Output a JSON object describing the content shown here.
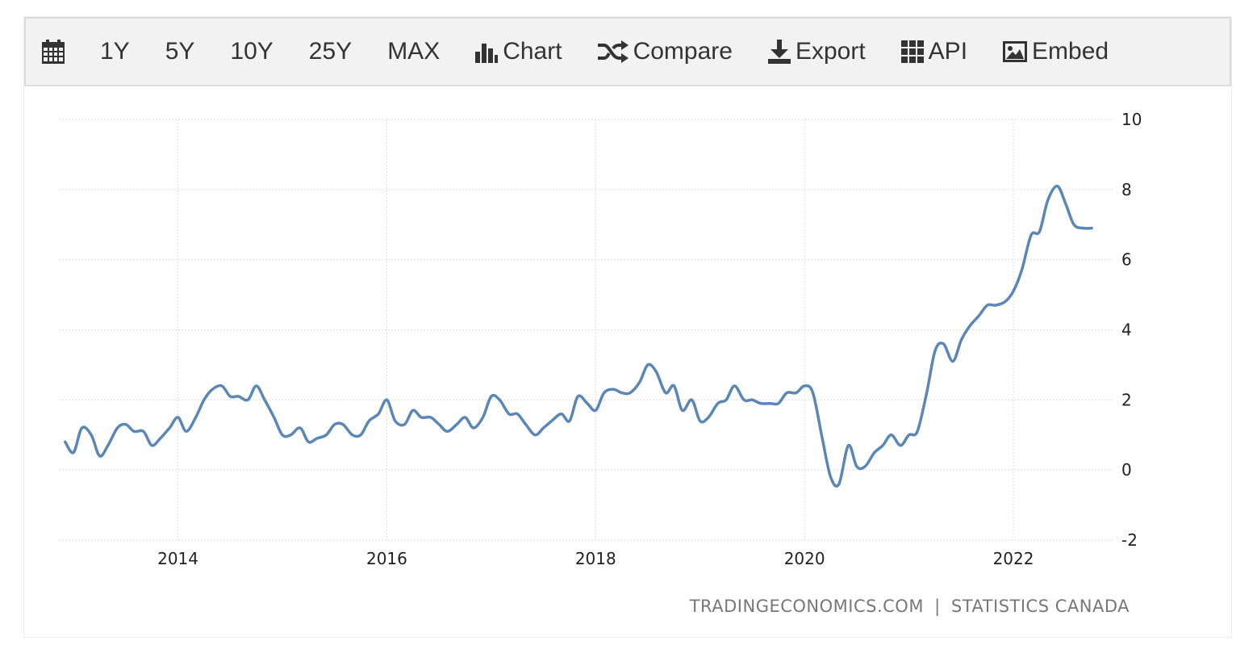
{
  "toolbar": {
    "calendar_icon": "calendar-icon",
    "ranges": [
      "1Y",
      "5Y",
      "10Y",
      "25Y",
      "MAX"
    ],
    "chart_label": "Chart",
    "compare_label": "Compare",
    "export_label": "Export",
    "api_label": "API",
    "embed_label": "Embed"
  },
  "credit": {
    "source_left": "TRADINGECONOMICS.COM",
    "separator": "|",
    "source_right": "STATISTICS CANADA"
  },
  "colors": {
    "line": "#5b87b6",
    "grid": "#dddddd",
    "toolbar_bg": "#f2f2f2"
  },
  "chart_data": {
    "type": "line",
    "title": "",
    "xlabel": "",
    "ylabel": "",
    "xlim": [
      2012.86,
      2022.95
    ],
    "ylim": [
      -2,
      10
    ],
    "yticks": [
      -2,
      0,
      2,
      4,
      6,
      8,
      10
    ],
    "xticks": [
      2014,
      2016,
      2018,
      2020,
      2022
    ],
    "grid": true,
    "y_axis_position": "right",
    "series": [
      {
        "x": [
          2012.92,
          2013.0,
          2013.08,
          2013.17,
          2013.25,
          2013.33,
          2013.42,
          2013.5,
          2013.58,
          2013.67,
          2013.75,
          2013.83,
          2013.92,
          2014.0,
          2014.08,
          2014.17,
          2014.25,
          2014.33,
          2014.42,
          2014.5,
          2014.58,
          2014.67,
          2014.75,
          2014.83,
          2014.92,
          2015.0,
          2015.08,
          2015.17,
          2015.25,
          2015.33,
          2015.42,
          2015.5,
          2015.58,
          2015.67,
          2015.75,
          2015.83,
          2015.92,
          2016.0,
          2016.08,
          2016.17,
          2016.25,
          2016.33,
          2016.42,
          2016.5,
          2016.58,
          2016.67,
          2016.75,
          2016.83,
          2016.92,
          2017.0,
          2017.08,
          2017.17,
          2017.25,
          2017.33,
          2017.42,
          2017.5,
          2017.58,
          2017.67,
          2017.75,
          2017.83,
          2017.92,
          2018.0,
          2018.08,
          2018.17,
          2018.25,
          2018.33,
          2018.42,
          2018.5,
          2018.58,
          2018.67,
          2018.75,
          2018.83,
          2018.92,
          2019.0,
          2019.08,
          2019.17,
          2019.25,
          2019.33,
          2019.42,
          2019.5,
          2019.58,
          2019.67,
          2019.75,
          2019.83,
          2019.92,
          2020.0,
          2020.08,
          2020.17,
          2020.25,
          2020.33,
          2020.42,
          2020.5,
          2020.58,
          2020.67,
          2020.75,
          2020.83,
          2020.92,
          2021.0,
          2021.08,
          2021.17,
          2021.25,
          2021.33,
          2021.42,
          2021.5,
          2021.58,
          2021.67,
          2021.75,
          2021.83,
          2021.92,
          2022.0,
          2022.08,
          2022.17,
          2022.25,
          2022.33,
          2022.42,
          2022.5,
          2022.58,
          2022.67,
          2022.75
        ],
        "values": [
          0.8,
          0.5,
          1.2,
          1.0,
          0.4,
          0.7,
          1.2,
          1.3,
          1.1,
          1.1,
          0.7,
          0.9,
          1.2,
          1.5,
          1.1,
          1.5,
          2.0,
          2.3,
          2.4,
          2.1,
          2.1,
          2.0,
          2.4,
          2.0,
          1.5,
          1.0,
          1.0,
          1.2,
          0.8,
          0.9,
          1.0,
          1.3,
          1.3,
          1.0,
          1.0,
          1.4,
          1.6,
          2.0,
          1.4,
          1.3,
          1.7,
          1.5,
          1.5,
          1.3,
          1.1,
          1.3,
          1.5,
          1.2,
          1.5,
          2.1,
          2.0,
          1.6,
          1.6,
          1.3,
          1.0,
          1.2,
          1.4,
          1.6,
          1.4,
          2.1,
          1.9,
          1.7,
          2.2,
          2.3,
          2.2,
          2.2,
          2.5,
          3.0,
          2.8,
          2.2,
          2.4,
          1.7,
          2.0,
          1.4,
          1.5,
          1.9,
          2.0,
          2.4,
          2.0,
          2.0,
          1.9,
          1.9,
          1.9,
          2.2,
          2.2,
          2.4,
          2.2,
          0.9,
          -0.2,
          -0.4,
          0.7,
          0.1,
          0.1,
          0.5,
          0.7,
          1.0,
          0.7,
          1.0,
          1.1,
          2.2,
          3.4,
          3.6,
          3.1,
          3.7,
          4.1,
          4.4,
          4.7,
          4.7,
          4.8,
          5.1,
          5.7,
          6.7,
          6.8,
          7.7,
          8.1,
          7.6,
          7.0,
          6.9,
          6.9
        ]
      }
    ]
  }
}
